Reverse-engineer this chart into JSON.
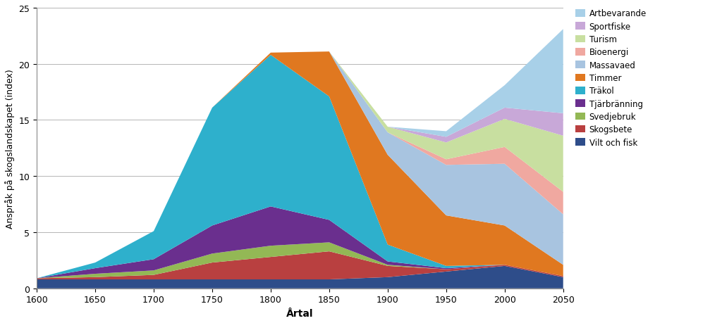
{
  "years": [
    1600,
    1650,
    1700,
    1750,
    1800,
    1850,
    1900,
    1950,
    2000,
    2050
  ],
  "series": {
    "Vilt och fisk": [
      0.8,
      0.8,
      0.8,
      0.8,
      0.8,
      0.8,
      1.0,
      1.5,
      2.0,
      1.0
    ],
    "Skogsbete": [
      0.1,
      0.2,
      0.4,
      1.5,
      2.0,
      2.5,
      1.0,
      0.2,
      0.1,
      0.1
    ],
    "Svedjebruk": [
      0.0,
      0.3,
      0.4,
      0.8,
      1.0,
      0.8,
      0.1,
      0.0,
      0.0,
      0.0
    ],
    "Tjärbränning": [
      0.0,
      0.5,
      1.0,
      2.5,
      3.5,
      2.0,
      0.3,
      0.1,
      0.0,
      0.0
    ],
    "Träkol": [
      0.0,
      0.5,
      2.5,
      10.5,
      13.5,
      11.0,
      1.5,
      0.2,
      0.0,
      0.0
    ],
    "Timmer": [
      0.0,
      0.0,
      0.0,
      0.0,
      0.2,
      4.0,
      8.0,
      4.5,
      3.5,
      1.0
    ],
    "Massavaed": [
      0.0,
      0.0,
      0.0,
      0.0,
      0.0,
      0.0,
      2.0,
      4.5,
      5.5,
      4.5
    ],
    "Bioenergi": [
      0.0,
      0.0,
      0.0,
      0.0,
      0.0,
      0.0,
      0.0,
      0.5,
      1.5,
      2.0
    ],
    "Turism": [
      0.0,
      0.0,
      0.0,
      0.0,
      0.0,
      0.0,
      0.5,
      1.5,
      2.5,
      5.0
    ],
    "Sportfiske": [
      0.0,
      0.0,
      0.0,
      0.0,
      0.0,
      0.0,
      0.0,
      0.5,
      1.0,
      2.0
    ],
    "Artbevarande": [
      0.0,
      0.0,
      0.0,
      0.0,
      0.0,
      0.0,
      0.0,
      0.5,
      2.0,
      7.5
    ]
  },
  "colors": {
    "Vilt och fisk": "#2e4d8a",
    "Skogsbete": "#b94040",
    "Svedjebruk": "#93b855",
    "Tjärbränning": "#6a2f8e",
    "Träkol": "#2eb0cc",
    "Timmer": "#e07820",
    "Massavaed": "#a8c4e0",
    "Bioenergi": "#f0a8a0",
    "Turism": "#c8dfa0",
    "Sportfiske": "#c8a8d8",
    "Artbevarande": "#a8d0e8"
  },
  "xlabel": "Årtal",
  "ylabel": "Anspråk på skogslandskapet (index)",
  "ylim": [
    0,
    25
  ],
  "xlim": [
    1600,
    2050
  ],
  "xticks": [
    1600,
    1650,
    1700,
    1750,
    1800,
    1850,
    1900,
    1950,
    2000,
    2050
  ],
  "yticks": [
    0,
    5,
    10,
    15,
    20,
    25
  ],
  "legend_order": [
    "Artbevarande",
    "Sportfiske",
    "Turism",
    "Bioenergi",
    "Massavaed",
    "Timmer",
    "Träkol",
    "Tjärbränning",
    "Svedjebruk",
    "Skogsbete",
    "Vilt och fisk"
  ]
}
